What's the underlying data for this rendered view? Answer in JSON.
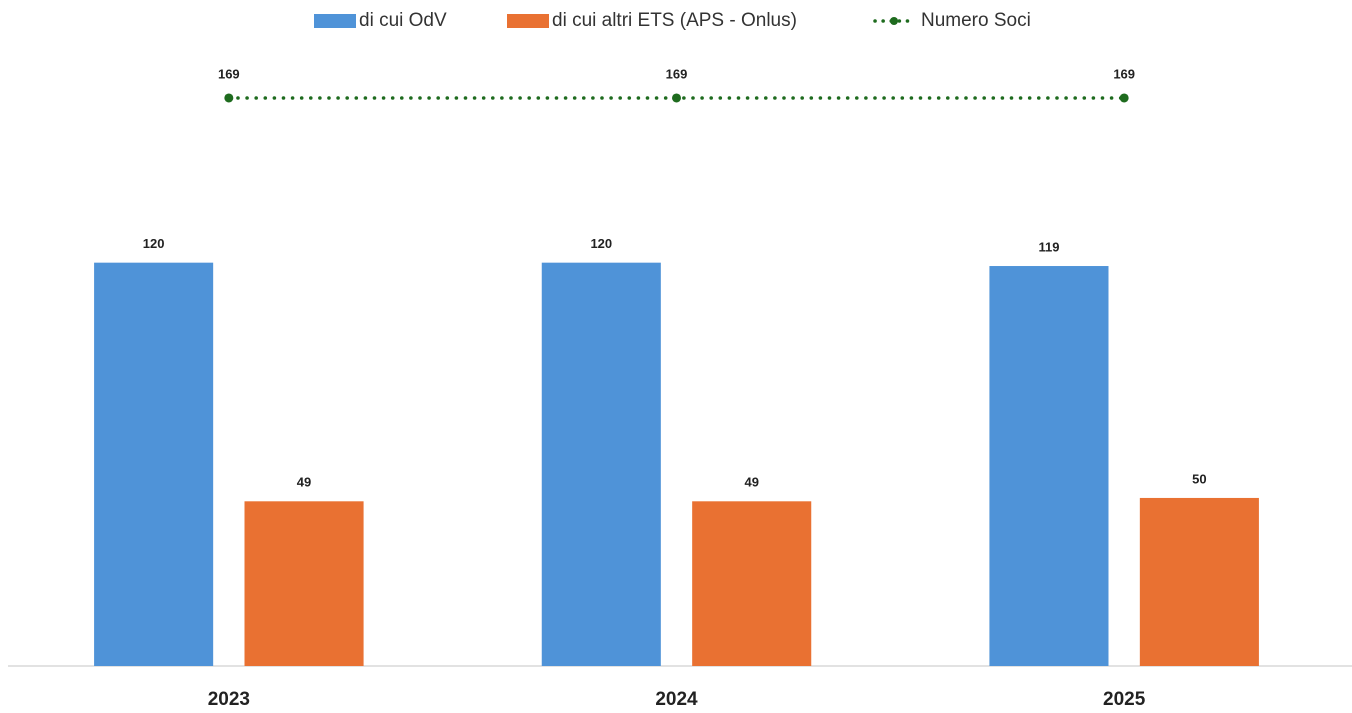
{
  "chart_data": {
    "type": "bar",
    "categories": [
      "2023",
      "2024",
      "2025"
    ],
    "series": [
      {
        "name": "di cui OdV",
        "type": "bar",
        "color": "#4f93d8",
        "values": [
          120,
          120,
          119
        ]
      },
      {
        "name": "di cui altri ETS (APS - Onlus)",
        "type": "bar",
        "color": "#e97132",
        "values": [
          49,
          49,
          50
        ]
      },
      {
        "name": "Numero Soci",
        "type": "line",
        "color": "#1e6b1e",
        "values": [
          169,
          169,
          169
        ]
      }
    ],
    "ylim": [
      0,
      180
    ],
    "legend": "top"
  }
}
